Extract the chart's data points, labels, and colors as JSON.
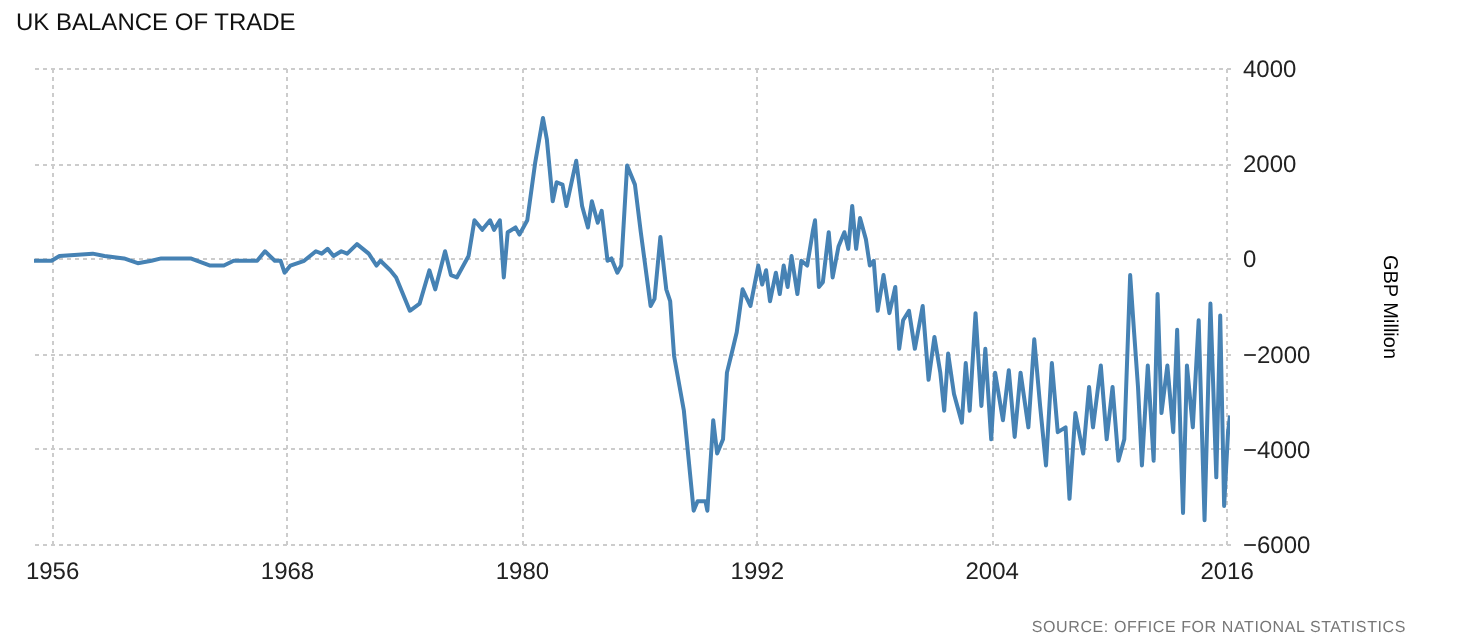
{
  "chart_data": {
    "type": "line",
    "title": "UK BALANCE OF TRADE",
    "ylabel": "GBP Million",
    "annotations": [
      "SOURCE: OFFICE FOR NATIONAL STATISTICS"
    ],
    "x": [
      1955.1,
      1956.0,
      1956.4,
      1958.1,
      1958.7,
      1959.7,
      1960.4,
      1961.1,
      1961.6,
      1963.1,
      1964.1,
      1964.8,
      1965.3,
      1966.5,
      1966.9,
      1967.4,
      1967.7,
      1967.9,
      1968.2,
      1968.9,
      1969.5,
      1969.8,
      1970.1,
      1970.4,
      1970.8,
      1971.1,
      1971.6,
      1972.2,
      1972.6,
      1972.8,
      1973.3,
      1973.6,
      1974.3,
      1974.8,
      1975.3,
      1975.6,
      1976.1,
      1976.4,
      1976.7,
      1977.3,
      1977.6,
      1978.0,
      1978.4,
      1978.6,
      1978.9,
      1979.1,
      1979.3,
      1979.7,
      1979.9,
      1980.3,
      1980.7,
      1981.1,
      1981.3,
      1981.6,
      1981.8,
      1982.1,
      1982.3,
      1982.8,
      1983.1,
      1983.4,
      1983.6,
      1983.9,
      1984.1,
      1984.4,
      1984.6,
      1984.9,
      1985.1,
      1985.4,
      1985.8,
      1986.1,
      1986.6,
      1986.8,
      1987.1,
      1987.4,
      1987.6,
      1987.8,
      1988.3,
      1988.8,
      1989.0,
      1989.4,
      1989.5,
      1989.8,
      1990.0,
      1990.3,
      1990.5,
      1990.8,
      1991.0,
      1991.3,
      1991.7,
      1992.1,
      1992.3,
      1992.5,
      1992.7,
      1993.0,
      1993.2,
      1993.4,
      1993.6,
      1993.8,
      1994.1,
      1994.3,
      1994.6,
      1994.9,
      1995.0,
      1995.2,
      1995.4,
      1995.7,
      1995.9,
      1996.2,
      1996.5,
      1996.7,
      1996.9,
      1997.1,
      1997.3,
      1997.6,
      1997.8,
      1998.0,
      1998.2,
      1998.5,
      1998.8,
      1999.1,
      1999.3,
      1999.5,
      1999.8,
      2000.1,
      2000.5,
      2000.8,
      2001.1,
      2001.4,
      2001.6,
      2001.8,
      2002.1,
      2002.5,
      2002.7,
      2002.9,
      2003.2,
      2003.5,
      2003.7,
      2004.0,
      2004.2,
      2004.6,
      2004.9,
      2005.2,
      2005.5,
      2005.9,
      2006.2,
      2006.5,
      2006.8,
      2007.1,
      2007.4,
      2007.8,
      2008.0,
      2008.3,
      2008.7,
      2009.0,
      2009.2,
      2009.6,
      2009.9,
      2010.2,
      2010.5,
      2010.8,
      2011.1,
      2011.3,
      2011.5,
      2011.7,
      2012.0,
      2012.3,
      2012.5,
      2012.7,
      2013.0,
      2013.3,
      2013.5,
      2013.8,
      2014.0,
      2014.3,
      2014.6,
      2014.9,
      2015.2,
      2015.5,
      2015.7,
      2015.9,
      2016.1,
      2016.2
    ],
    "series": [
      {
        "color": "#4682b4",
        "values": [
          -50,
          -50,
          50,
          100,
          50,
          0,
          -100,
          -50,
          0,
          0,
          -150,
          -150,
          -50,
          -50,
          150,
          -50,
          -50,
          -300,
          -150,
          -50,
          150,
          100,
          200,
          50,
          150,
          100,
          300,
          100,
          -150,
          -50,
          -250,
          -400,
          -1100,
          -950,
          -250,
          -650,
          150,
          -350,
          -400,
          50,
          800,
          600,
          800,
          600,
          800,
          -400,
          550,
          650,
          500,
          800,
          2000,
          2950,
          2500,
          1200,
          1600,
          1550,
          1100,
          2050,
          1100,
          650,
          1200,
          750,
          1000,
          -50,
          0,
          -300,
          -150,
          1950,
          1550,
          550,
          -1000,
          -850,
          450,
          -650,
          -900,
          -2050,
          -3200,
          -5300,
          -5100,
          -5100,
          -5300,
          -3400,
          -4100,
          -3800,
          -2400,
          -1900,
          -1550,
          -650,
          -1000,
          -150,
          -550,
          -250,
          -900,
          -300,
          -750,
          -150,
          -600,
          50,
          -750,
          -50,
          -150,
          600,
          800,
          -600,
          -500,
          550,
          -400,
          250,
          550,
          200,
          1100,
          200,
          850,
          400,
          -150,
          -50,
          -1100,
          -350,
          -1150,
          -600,
          -1900,
          -1300,
          -1100,
          -1900,
          -1000,
          -2550,
          -1650,
          -2400,
          -3200,
          -2000,
          -2850,
          -3450,
          -2200,
          -3200,
          -1150,
          -3100,
          -1900,
          -3800,
          -2400,
          -3400,
          -2350,
          -3750,
          -2400,
          -3550,
          -1700,
          -3100,
          -4350,
          -2200,
          -3650,
          -3550,
          -5050,
          -3250,
          -4100,
          -2700,
          -3550,
          -2250,
          -3800,
          -2700,
          -4250,
          -3800,
          -350,
          -1550,
          -2700,
          -4350,
          -2250,
          -4250,
          -750,
          -3250,
          -2250,
          -3650,
          -1500,
          -5350,
          -2250,
          -3550,
          -1300,
          -5500,
          -950,
          -4600,
          -1200,
          -5200,
          -3650,
          -3300
        ]
      }
    ],
    "xlim": [
      1955.1,
      2016.2
    ],
    "xticks": [
      1956,
      1968,
      1980,
      1992,
      2004,
      2016
    ],
    "ylim": [
      -6000,
      4000
    ],
    "yticks": [
      -6000,
      -4000,
      -2000,
      0,
      2000,
      4000
    ],
    "grid": true,
    "marker": "none",
    "line_style": "solid"
  }
}
